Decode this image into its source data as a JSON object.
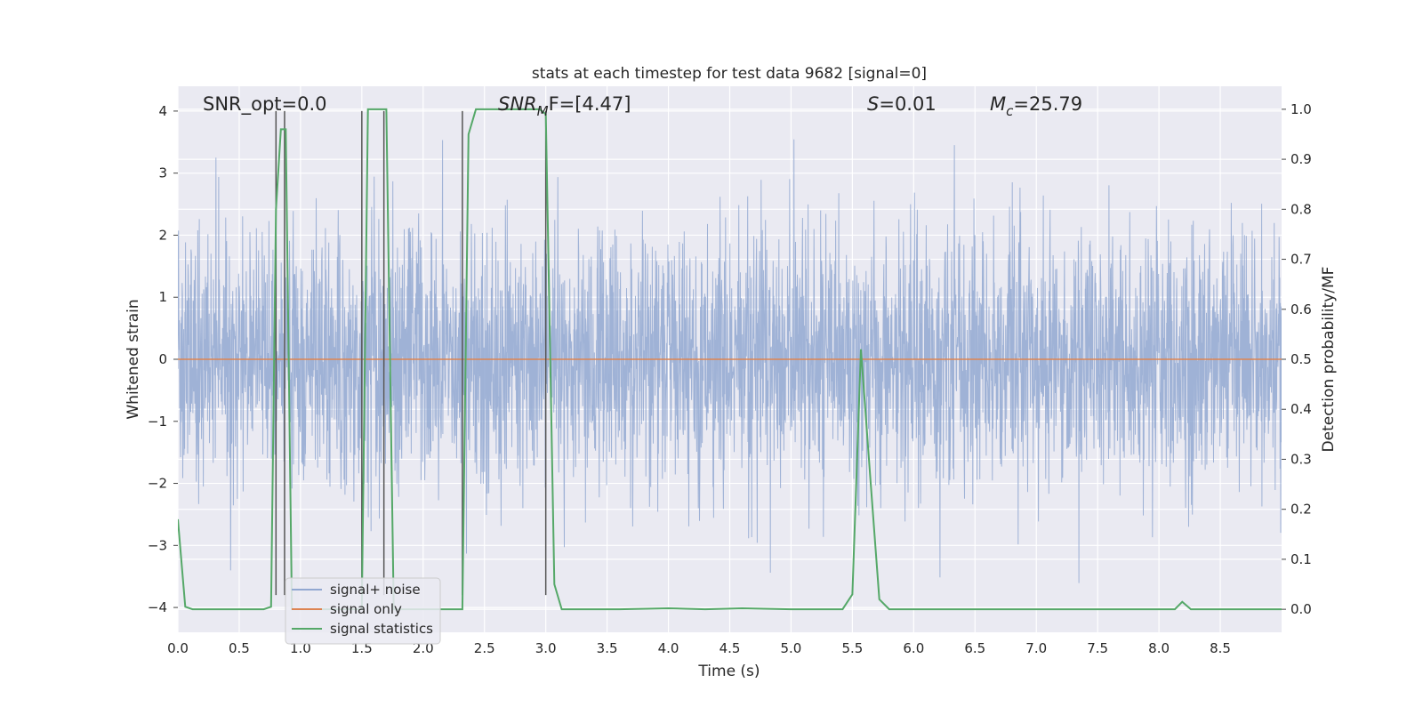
{
  "chart_data": {
    "type": "line",
    "title": "stats at each timestep for test data 9682 [signal=0]",
    "xlabel": "Time (s)",
    "ylabel": "Whitened strain",
    "y2label": "Detection probability/MF",
    "xlim": [
      0.0,
      9.0
    ],
    "ylim": [
      -4.4,
      4.4
    ],
    "y2lim": [
      -0.046,
      1.046
    ],
    "xticks": [
      0.0,
      0.5,
      1.0,
      1.5,
      2.0,
      2.5,
      3.0,
      3.5,
      4.0,
      4.5,
      5.0,
      5.5,
      6.0,
      6.5,
      7.0,
      7.5,
      8.0,
      8.5
    ],
    "xtick_labels": [
      "0.0",
      "0.5",
      "1.0",
      "1.5",
      "2.0",
      "2.5",
      "3.0",
      "3.5",
      "4.0",
      "4.5",
      "5.0",
      "5.5",
      "6.0",
      "6.5",
      "7.0",
      "7.5",
      "8.0",
      "8.5"
    ],
    "yticks": [
      4,
      3,
      2,
      1,
      0,
      -1,
      -2,
      -3,
      -4
    ],
    "ytick_labels": [
      "4",
      "3",
      "2",
      "1",
      "0",
      "−1",
      "−2",
      "−3",
      "−4"
    ],
    "y2ticks": [
      1.0,
      0.9,
      0.8,
      0.7,
      0.6,
      0.5,
      0.4,
      0.3,
      0.2,
      0.1,
      0.0
    ],
    "y2tick_labels": [
      "1.0",
      "0.9",
      "0.8",
      "0.7",
      "0.6",
      "0.5",
      "0.4",
      "0.3",
      "0.2",
      "0.1",
      "0.0"
    ],
    "grid": true,
    "legend_position": "lower-left",
    "annotations": {
      "snr_opt": "SNR_opt=0.0",
      "snr_mf_sym": "SNR",
      "snr_mf_sub": "M",
      "snr_mf_tail": "F=[4.47]",
      "s_sym": "S",
      "s_tail": "=0.01",
      "mc_sym": "M",
      "mc_sub": "c",
      "mc_tail": "=25.79"
    },
    "series": [
      {
        "name": "signal+ noise",
        "color": "#92a8d1",
        "style": "noise",
        "duration": 9.0,
        "typical_amplitude": 1.65,
        "max_abs": 4.0
      },
      {
        "name": "signal only",
        "color": "#dd8452",
        "x": [
          0.0,
          9.0
        ],
        "y": [
          0.0,
          0.0
        ]
      },
      {
        "name": "signal statistics",
        "color": "#55a868",
        "axis": "right",
        "x": [
          0.0,
          0.06,
          0.12,
          0.25,
          0.5,
          0.7,
          0.76,
          0.8,
          0.84,
          0.88,
          0.93,
          0.98,
          1.1,
          1.3,
          1.47,
          1.5,
          1.55,
          1.6,
          1.7,
          1.76,
          1.82,
          1.95,
          2.1,
          2.2,
          2.32,
          2.37,
          2.43,
          2.6,
          2.8,
          2.95,
          3.0,
          3.07,
          3.13,
          3.3,
          3.6,
          4.0,
          4.3,
          4.6,
          5.0,
          5.3,
          5.42,
          5.5,
          5.57,
          5.65,
          5.72,
          5.8,
          6.1,
          6.8,
          7.5,
          8.05,
          8.13,
          8.19,
          8.26,
          8.5,
          9.0
        ],
        "y": [
          0.18,
          0.005,
          0.0,
          0.0,
          0.0,
          0.0,
          0.005,
          0.8,
          0.96,
          0.96,
          0.0,
          0.0,
          0.0,
          0.0,
          0.0,
          0.0,
          1.0,
          1.0,
          1.0,
          0.0,
          0.0,
          0.0,
          0.0,
          0.0,
          0.0,
          0.95,
          1.0,
          1.0,
          1.0,
          1.0,
          0.99,
          0.05,
          0.0,
          0.0,
          0.0,
          0.002,
          0.0,
          0.002,
          0.0,
          0.0,
          0.0,
          0.03,
          0.52,
          0.25,
          0.02,
          0.0,
          0.0,
          0.0,
          0.0,
          0.0,
          0.0,
          0.015,
          0.0,
          0.0,
          0.0
        ]
      }
    ],
    "vertical_markers": {
      "color": "#555555",
      "x": [
        0.8,
        0.87,
        1.5,
        1.68,
        2.32,
        3.0
      ],
      "y_top": 4.0,
      "y_bottom": -3.8
    }
  }
}
